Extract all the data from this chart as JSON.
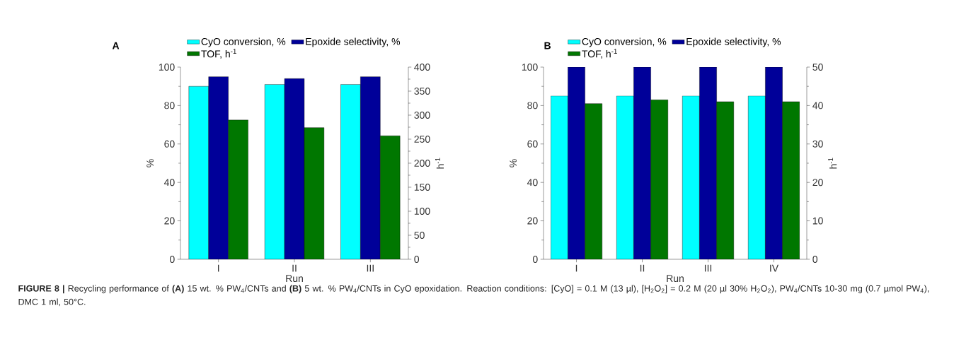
{
  "chart_data": [
    {
      "type": "bar",
      "title": "A",
      "xlabel": "Run",
      "ylabel": "%",
      "y2label": "h$^{-1}$",
      "categories": [
        "I",
        "II",
        "III"
      ],
      "series": [
        {
          "name": "CyO conversion, %",
          "color": "#00ffff",
          "values": [
            90,
            91,
            91
          ]
        },
        {
          "name": "Epoxide selectivity, %",
          "color": "#000099",
          "values": [
            95,
            94,
            95
          ]
        },
        {
          "name": "TOF, h$^{-1}$",
          "color": "#007700",
          "values": [
            290,
            274,
            257
          ],
          "axis": "y2"
        }
      ],
      "ylim": [
        0,
        100
      ],
      "yticks": [
        0,
        20,
        40,
        60,
        80,
        100
      ],
      "y2lim": [
        0,
        400
      ],
      "y2ticks": [
        0,
        50,
        100,
        150,
        200,
        250,
        300,
        350,
        400
      ],
      "legend": "top",
      "annotations": [
        "**FIGURE 8 |** Recycling performance of **(A)** 15 wt. % PW$_{4}$/CNTs and **(B)** 5 wt. % PW$_{4}$/CNTs in CyO epoxidation. Reaction conditions: [CyO] = 0.1 M (13 µl), [H$_{2}$O$_{2}$] = 0.2 M (20 µl 30% H$_{2}$O$_{2}$), PW$_{4}$/CNTs 10-30 mg (0.7 µmol PW$_{4}$), DMC 1 ml, 50°C."
      ]
    },
    {
      "type": "bar",
      "title": "B",
      "xlabel": "Run",
      "ylabel": "%",
      "y2label": "h$^{-1}$",
      "categories": [
        "I",
        "II",
        "III",
        "IV"
      ],
      "series": [
        {
          "name": "CyO conversion, %",
          "color": "#00ffff",
          "values": [
            85,
            85,
            85,
            85
          ]
        },
        {
          "name": "Epoxide selectivity, %",
          "color": "#000099",
          "values": [
            100,
            100,
            100,
            100
          ]
        },
        {
          "name": "TOF, h$^{-1}$",
          "color": "#007700",
          "values": [
            40.5,
            41.5,
            41,
            41
          ],
          "axis": "y2"
        }
      ],
      "ylim": [
        0,
        100
      ],
      "yticks": [
        0,
        20,
        40,
        60,
        80,
        100
      ],
      "y2lim": [
        0,
        50
      ],
      "y2ticks": [
        0,
        10,
        20,
        30,
        40,
        50
      ],
      "legend": "top"
    }
  ]
}
